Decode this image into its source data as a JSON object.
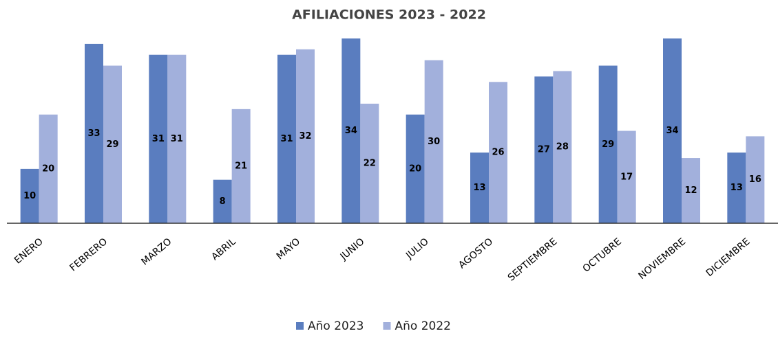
{
  "chart_data": {
    "type": "bar",
    "title": "AFILIACIONES 2023 - 2022",
    "categories": [
      "ENERO",
      "FEBRERO",
      "MARZO",
      "ABRIL",
      "MAYO",
      "JUNIO",
      "JULIO",
      "AGOSTO",
      "SEPTIEMBRE",
      "OCTUBRE",
      "NOVIEMBRE",
      "DICIEMBRE"
    ],
    "series": [
      {
        "name": "Año 2023",
        "color": "#5a7dbf",
        "values": [
          10,
          33,
          31,
          8,
          31,
          34,
          20,
          13,
          27,
          29,
          34,
          13
        ]
      },
      {
        "name": "Año 2022",
        "color": "#a2b0dc",
        "values": [
          20,
          29,
          31,
          21,
          32,
          22,
          30,
          26,
          28,
          17,
          12,
          16
        ]
      }
    ],
    "legend": "bottom"
  }
}
